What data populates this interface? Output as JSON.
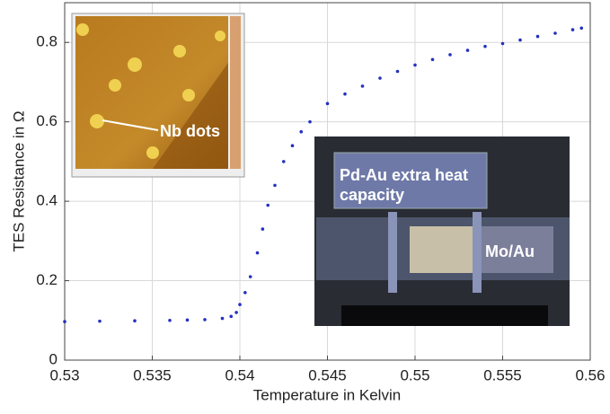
{
  "chart_data": {
    "type": "scatter",
    "xlabel": "Temperature in Kelvin",
    "ylabel": "TES Resistance in Ω",
    "x": [
      0.53,
      0.532,
      0.534,
      0.536,
      0.537,
      0.538,
      0.539,
      0.5395,
      0.5398,
      0.54,
      0.5403,
      0.5406,
      0.541,
      0.5413,
      0.5416,
      0.542,
      0.5425,
      0.543,
      0.5435,
      0.544,
      0.545,
      0.546,
      0.547,
      0.548,
      0.549,
      0.55,
      0.551,
      0.552,
      0.553,
      0.554,
      0.555,
      0.556,
      0.557,
      0.558,
      0.559,
      0.5595
    ],
    "values": [
      0.097,
      0.098,
      0.099,
      0.1,
      0.101,
      0.102,
      0.105,
      0.11,
      0.12,
      0.14,
      0.17,
      0.21,
      0.27,
      0.33,
      0.39,
      0.44,
      0.5,
      0.54,
      0.575,
      0.6,
      0.646,
      0.67,
      0.69,
      0.71,
      0.727,
      0.743,
      0.757,
      0.769,
      0.78,
      0.79,
      0.797,
      0.806,
      0.815,
      0.823,
      0.832,
      0.836
    ],
    "color": "#2431c0",
    "xlim": [
      0.53,
      0.56
    ],
    "xticks": [
      0.53,
      0.535,
      0.54,
      0.545,
      0.55,
      0.555,
      0.56
    ],
    "ylim": [
      0,
      0.9
    ],
    "yticks": [
      0,
      0.2,
      0.4,
      0.6,
      0.8
    ],
    "grid": true,
    "annotations": [
      "Nb dots",
      "Pd-Au extra heat capacity",
      "Mo/Au"
    ]
  }
}
